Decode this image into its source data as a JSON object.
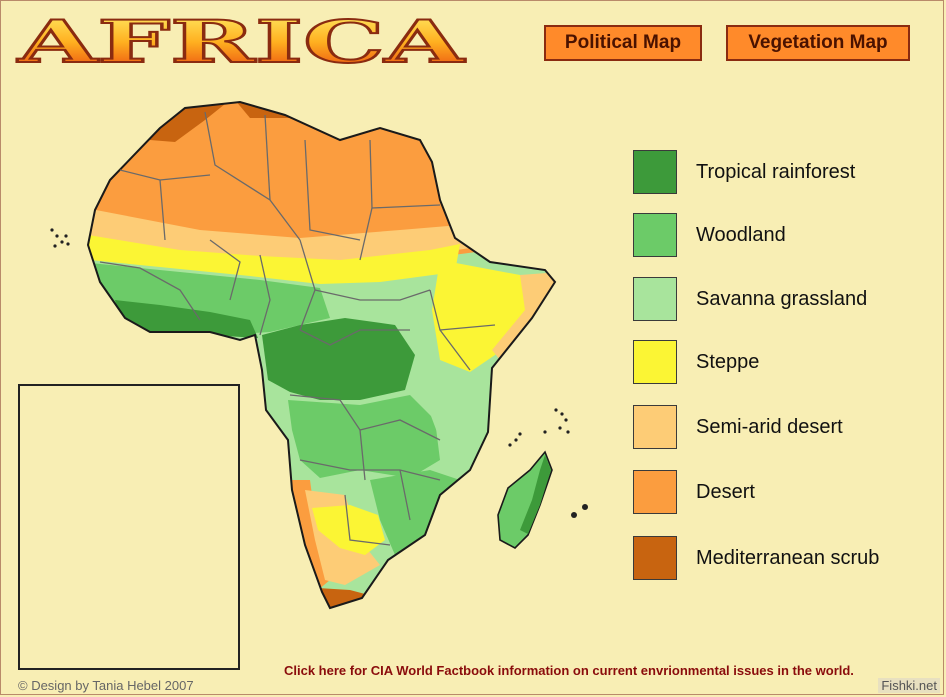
{
  "header": {
    "title": "AFRICA",
    "political_button": "Political Map",
    "vegetation_button": "Vegetation Map"
  },
  "legend": {
    "items": [
      {
        "label": "Tropical rainforest",
        "color": "#3d9a3a"
      },
      {
        "label": "Woodland",
        "color": "#6ccb68"
      },
      {
        "label": "Savanna grassland",
        "color": "#a8e49c"
      },
      {
        "label": "Steppe",
        "color": "#fbf534"
      },
      {
        "label": "Semi-arid desert",
        "color": "#fdcc76"
      },
      {
        "label": "Desert",
        "color": "#fb9d3f"
      },
      {
        "label": "Mediterranean scrub",
        "color": "#c86410"
      }
    ]
  },
  "footer": {
    "cia_link": "Click here for CIA World Factbook information on current envrionmental issues in the world.",
    "credit": "© Design by Tania Hebel 2007",
    "watermark": "Fishki.net"
  }
}
